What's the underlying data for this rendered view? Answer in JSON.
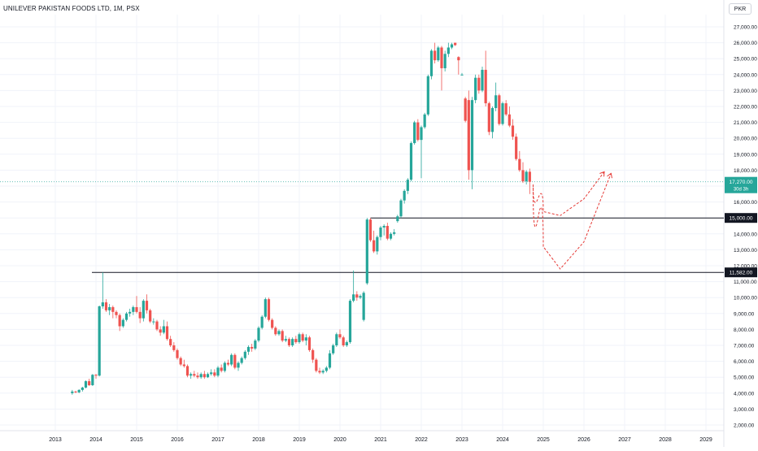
{
  "header": {
    "title": "UNILEVER PAKISTAN FOODS LTD, 1M, PSX",
    "currency": "PKR"
  },
  "colors": {
    "up": "#26a69a",
    "down": "#ef5350",
    "projection": "#e53935",
    "level_line": "#131722",
    "grid": "#f0f3fa"
  },
  "chart_data": {
    "type": "candlestick",
    "title": "UNILEVER PAKISTAN FOODS LTD, 1M, PSX",
    "ylim": [
      1600,
      27400
    ],
    "y_ticks": [
      "2,000.00",
      "3,000.00",
      "4,000.00",
      "5,000.00",
      "6,000.00",
      "7,000.00",
      "8,000.00",
      "9,000.00",
      "10,000.00",
      "11,000.00",
      "12,000.00",
      "13,000.00",
      "14,000.00",
      "15,000.00",
      "16,000.00",
      "17,000.00",
      "18,000.00",
      "19,000.00",
      "20,000.00",
      "21,000.00",
      "22,000.00",
      "23,000.00",
      "24,000.00",
      "25,000.00",
      "26,000.00",
      "27,000.00"
    ],
    "x_ticks": [
      "2013",
      "2014",
      "2015",
      "2016",
      "2017",
      "2018",
      "2019",
      "2020",
      "2021",
      "2022",
      "2023",
      "2024",
      "2025",
      "2026",
      "2027",
      "2028",
      "2029"
    ],
    "horizontal_levels": [
      {
        "value": 15000,
        "label": "15,000.00",
        "from": "2020.75"
      },
      {
        "value": 11582,
        "label": "11,582.00",
        "from": "2013.9"
      }
    ],
    "last_price": {
      "value": 17270,
      "label": "17,270.00",
      "sublabel": "30d 3h"
    },
    "candles": [
      [
        "2013-06",
        4000,
        4200,
        3900,
        4100
      ],
      [
        "2013-07",
        4100,
        4150,
        4000,
        4050
      ],
      [
        "2013-08",
        4050,
        4250,
        4000,
        4200
      ],
      [
        "2013-09",
        4200,
        4400,
        4100,
        4350
      ],
      [
        "2013-10",
        4350,
        4800,
        4300,
        4750
      ],
      [
        "2013-11",
        4750,
        4900,
        4450,
        4500
      ],
      [
        "2013-12",
        4500,
        5200,
        4450,
        5150
      ],
      [
        "2014-01",
        5150,
        5200,
        4900,
        5100
      ],
      [
        "2014-02",
        5100,
        9500,
        5050,
        9450
      ],
      [
        "2014-03",
        9450,
        11582,
        9300,
        9700
      ],
      [
        "2014-04",
        9700,
        9900,
        9100,
        9200
      ],
      [
        "2014-05",
        9200,
        9600,
        8900,
        9400
      ],
      [
        "2014-06",
        9400,
        9500,
        8700,
        9100
      ],
      [
        "2014-07",
        9100,
        9200,
        8700,
        8900
      ],
      [
        "2014-08",
        8900,
        9000,
        7900,
        8200
      ],
      [
        "2014-09",
        8200,
        8700,
        8100,
        8600
      ],
      [
        "2014-10",
        8600,
        9100,
        8500,
        9000
      ],
      [
        "2014-11",
        9000,
        9300,
        8800,
        9100
      ],
      [
        "2014-12",
        9100,
        9500,
        8900,
        9400
      ],
      [
        "2015-01",
        9400,
        10100,
        9000,
        9100
      ],
      [
        "2015-02",
        9100,
        9400,
        8400,
        8700
      ],
      [
        "2015-03",
        8700,
        9900,
        8500,
        9800
      ],
      [
        "2015-04",
        9800,
        10200,
        9000,
        9200
      ],
      [
        "2015-05",
        9200,
        9300,
        8400,
        8500
      ],
      [
        "2015-06",
        8500,
        8700,
        8300,
        8500
      ],
      [
        "2015-07",
        8500,
        8600,
        7900,
        8000
      ],
      [
        "2015-08",
        8000,
        8200,
        7600,
        7800
      ],
      [
        "2015-09",
        7800,
        8600,
        7700,
        8200
      ],
      [
        "2015-10",
        8200,
        8500,
        7300,
        7400
      ],
      [
        "2015-11",
        7400,
        7600,
        6900,
        7000
      ],
      [
        "2015-12",
        7000,
        7200,
        6600,
        6700
      ],
      [
        "2016-01",
        6700,
        6800,
        6100,
        6200
      ],
      [
        "2016-02",
        6200,
        6300,
        5700,
        5800
      ],
      [
        "2016-03",
        5800,
        6100,
        5600,
        5700
      ],
      [
        "2016-04",
        5700,
        5800,
        5000,
        5100
      ],
      [
        "2016-05",
        5100,
        5300,
        4900,
        5200
      ],
      [
        "2016-06",
        5200,
        5400,
        5000,
        5100
      ],
      [
        "2016-07",
        5100,
        5300,
        4900,
        5000
      ],
      [
        "2016-08",
        5000,
        5300,
        4900,
        5200
      ],
      [
        "2016-09",
        5200,
        5400,
        4900,
        5000
      ],
      [
        "2016-10",
        5000,
        5300,
        4950,
        5200
      ],
      [
        "2016-11",
        5200,
        5500,
        5100,
        5300
      ],
      [
        "2016-12",
        5300,
        5500,
        5000,
        5100
      ],
      [
        "2017-01",
        5100,
        5700,
        5000,
        5600
      ],
      [
        "2017-02",
        5600,
        5800,
        5300,
        5400
      ],
      [
        "2017-03",
        5400,
        6000,
        5300,
        5900
      ],
      [
        "2017-04",
        5900,
        6100,
        5700,
        5800
      ],
      [
        "2017-05",
        5800,
        6500,
        5700,
        6400
      ],
      [
        "2017-06",
        6400,
        6500,
        5500,
        5600
      ],
      [
        "2017-07",
        5600,
        6000,
        5400,
        5900
      ],
      [
        "2017-08",
        5900,
        6300,
        5800,
        6200
      ],
      [
        "2017-09",
        6200,
        6700,
        6100,
        6600
      ],
      [
        "2017-10",
        6600,
        7000,
        6400,
        6900
      ],
      [
        "2017-11",
        6900,
        7100,
        6600,
        6800
      ],
      [
        "2017-12",
        6800,
        7400,
        6700,
        7300
      ],
      [
        "2018-01",
        7300,
        8200,
        7200,
        8100
      ],
      [
        "2018-02",
        8100,
        8900,
        8000,
        8800
      ],
      [
        "2018-03",
        8800,
        10000,
        8700,
        9900
      ],
      [
        "2018-04",
        9900,
        10000,
        8500,
        8600
      ],
      [
        "2018-05",
        8600,
        8700,
        8000,
        8100
      ],
      [
        "2018-06",
        8100,
        8200,
        7600,
        7700
      ],
      [
        "2018-07",
        7700,
        8000,
        7600,
        7900
      ],
      [
        "2018-08",
        7900,
        8000,
        7200,
        7300
      ],
      [
        "2018-09",
        7300,
        7600,
        7200,
        7400
      ],
      [
        "2018-10",
        7400,
        7500,
        6900,
        7000
      ],
      [
        "2018-11",
        7000,
        7500,
        6900,
        7400
      ],
      [
        "2018-12",
        7400,
        7600,
        7100,
        7200
      ],
      [
        "2019-01",
        7200,
        7800,
        7100,
        7700
      ],
      [
        "2019-02",
        7700,
        7800,
        7200,
        7300
      ],
      [
        "2019-03",
        7300,
        7700,
        7000,
        7500
      ],
      [
        "2019-04",
        7500,
        7600,
        6600,
        6700
      ],
      [
        "2019-05",
        6700,
        6800,
        5900,
        6100
      ],
      [
        "2019-06",
        6100,
        6200,
        5300,
        5400
      ],
      [
        "2019-07",
        5400,
        5600,
        5200,
        5300
      ],
      [
        "2019-08",
        5300,
        5500,
        5200,
        5400
      ],
      [
        "2019-09",
        5400,
        5700,
        5300,
        5600
      ],
      [
        "2019-10",
        5600,
        6700,
        5500,
        6500
      ],
      [
        "2019-11",
        6500,
        7100,
        6400,
        7000
      ],
      [
        "2019-12",
        7000,
        7800,
        6900,
        7700
      ],
      [
        "2020-01",
        7700,
        8000,
        7400,
        7500
      ],
      [
        "2020-02",
        7500,
        7600,
        6900,
        7000
      ],
      [
        "2020-03",
        7000,
        7300,
        6900,
        7200
      ],
      [
        "2020-04",
        7200,
        9900,
        7100,
        9800
      ],
      [
        "2020-05",
        9800,
        11700,
        9700,
        10200
      ],
      [
        "2020-06",
        10200,
        10400,
        9800,
        10000
      ],
      [
        "2020-07",
        10000,
        10200,
        9900,
        10100
      ],
      [
        "2020-08",
        8600,
        10400,
        8500,
        10300
      ],
      [
        "2020-09",
        10900,
        15000,
        10800,
        14900
      ],
      [
        "2020-10",
        14900,
        15000,
        13500,
        13600
      ],
      [
        "2020-11",
        13600,
        14200,
        12800,
        12900
      ],
      [
        "2020-12",
        12900,
        13900,
        12700,
        13800
      ],
      [
        "2021-01",
        13800,
        14500,
        13600,
        14400
      ],
      [
        "2021-02",
        14400,
        14600,
        13900,
        14500
      ],
      [
        "2021-03",
        14500,
        14700,
        13600,
        13700
      ],
      [
        "2021-04",
        13700,
        14100,
        13600,
        14000
      ],
      [
        "2021-05",
        14000,
        14300,
        13900,
        14100
      ],
      [
        "2021-06",
        14800,
        15200,
        14700,
        15100
      ],
      [
        "2021-07",
        15100,
        16200,
        15000,
        16100
      ],
      [
        "2021-08",
        16100,
        16800,
        15900,
        16700
      ],
      [
        "2021-09",
        16700,
        17500,
        16500,
        17400
      ],
      [
        "2021-10",
        17400,
        19800,
        17300,
        19700
      ],
      [
        "2021-11",
        19700,
        21100,
        19600,
        21000
      ],
      [
        "2021-12",
        21000,
        21200,
        19800,
        19900
      ],
      [
        "2022-01",
        19900,
        20800,
        17500,
        20700
      ],
      [
        "2022-02",
        20700,
        21600,
        20600,
        21500
      ],
      [
        "2022-03",
        21500,
        24000,
        21400,
        23900
      ],
      [
        "2022-04",
        23900,
        25600,
        23700,
        25500
      ],
      [
        "2022-05",
        25500,
        26000,
        24700,
        24900
      ],
      [
        "2022-06",
        24900,
        25800,
        24800,
        25700
      ],
      [
        "2022-07",
        25700,
        25800,
        23000,
        24400
      ],
      [
        "2022-08",
        24400,
        25500,
        24200,
        25300
      ],
      [
        "2022-09",
        25300,
        26000,
        25100,
        25700
      ],
      [
        "2022-10",
        25700,
        26000,
        25600,
        25900
      ],
      [
        "2022-11",
        26000,
        26000,
        25800,
        25850
      ],
      [
        "2022-12",
        25100,
        25150,
        24000,
        24900
      ],
      [
        "2023-01",
        24000,
        24100,
        23950,
        24000
      ],
      [
        "2023-02",
        22500,
        22600,
        21000,
        21100
      ],
      [
        "2023-03",
        22400,
        23000,
        17400,
        18000
      ],
      [
        "2023-04",
        18000,
        22600,
        16800,
        22400
      ],
      [
        "2023-05",
        22400,
        24000,
        22200,
        23800
      ],
      [
        "2023-06",
        23800,
        24000,
        22800,
        23000
      ],
      [
        "2023-07",
        23000,
        24500,
        22900,
        24300
      ],
      [
        "2023-08",
        24300,
        25500,
        22000,
        22200
      ],
      [
        "2023-09",
        22200,
        22300,
        20200,
        20400
      ],
      [
        "2023-10",
        20400,
        22000,
        20000,
        21900
      ],
      [
        "2023-11",
        21900,
        23500,
        21700,
        22700
      ],
      [
        "2023-12",
        22700,
        22800,
        20800,
        20900
      ],
      [
        "2024-01",
        20900,
        22300,
        20800,
        22200
      ],
      [
        "2024-02",
        22200,
        22400,
        21400,
        21500
      ],
      [
        "2024-03",
        21500,
        22000,
        20700,
        20800
      ],
      [
        "2024-04",
        20800,
        21200,
        19900,
        20100
      ],
      [
        "2024-05",
        20100,
        20300,
        18600,
        18700
      ],
      [
        "2024-06",
        18700,
        19200,
        17900,
        18000
      ],
      [
        "2024-07",
        18000,
        18500,
        17200,
        17300
      ],
      [
        "2024-08",
        17300,
        18000,
        17100,
        17900
      ],
      [
        "2024-09",
        17900,
        18100,
        16500,
        17270
      ]
    ],
    "projections": [
      {
        "name": "",
        "points": [
          [
            "2024-10",
            17100
          ],
          [
            "2025-01",
            15400
          ],
          [
            "2025-06",
            15150
          ],
          [
            "2026-01",
            16200
          ],
          [
            "2026-07",
            17900
          ]
        ]
      },
      {
        "name": "",
        "points": [
          [
            "2024-10",
            16900
          ],
          [
            "2025-01",
            13200
          ],
          [
            "2025-06",
            11800
          ],
          [
            "2026-01",
            13500
          ],
          [
            "2026-09",
            17800
          ]
        ]
      }
    ]
  }
}
